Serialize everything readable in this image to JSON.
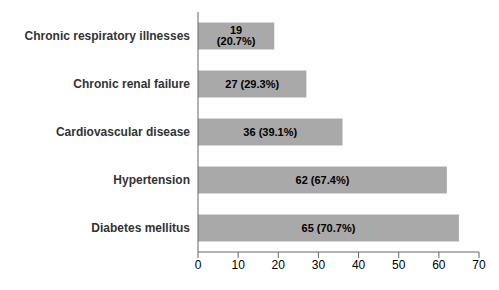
{
  "chart_data": {
    "type": "bar",
    "orientation": "horizontal",
    "categories": [
      "Diabetes mellitus",
      "Hypertension",
      "Cardiovascular disease",
      "Chronic renal failure",
      "Chronic respiratory illnesses"
    ],
    "values": [
      65,
      62,
      36,
      27,
      19
    ],
    "value_labels": [
      "65 (70.7%)",
      "62 (67.4%)",
      "36 (39.1%)",
      "27 (29.3%)",
      "19 (20.7%)"
    ],
    "data_labels": true,
    "color": "#a9a9a9",
    "xlim": [
      0,
      70
    ],
    "xticks": [
      0,
      10,
      20,
      30,
      40,
      50,
      60,
      70
    ],
    "grid": false
  }
}
